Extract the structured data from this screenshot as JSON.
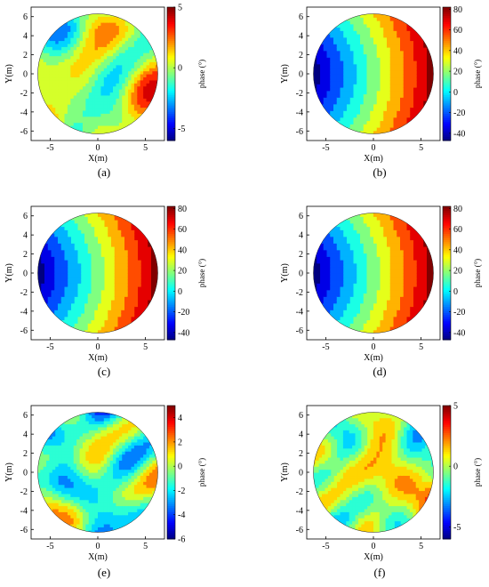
{
  "figure": {
    "panels": [
      {
        "label": "(a)",
        "xlabel": "X(m)",
        "ylabel": "Y(m)",
        "cblabel": "phase (°)",
        "cticks": [
          "5",
          "0",
          "-5"
        ],
        "cvals": [
          5,
          0,
          -5
        ],
        "crange": [
          -6,
          5
        ],
        "pattern": "noise",
        "amp": 5,
        "seed": 11
      },
      {
        "label": "(b)",
        "xlabel": "X(m)",
        "ylabel": "Y(m)",
        "cblabel": "phase (°)",
        "cticks": [
          "80",
          "60",
          "40",
          "20",
          "0",
          "-20",
          "-40"
        ],
        "cvals": [
          80,
          60,
          40,
          20,
          0,
          -20,
          -40
        ],
        "crange": [
          -47,
          82
        ],
        "pattern": "tilt"
      },
      {
        "label": "(c)",
        "xlabel": "X(m)",
        "ylabel": "Y(m)",
        "cblabel": "phase (°)",
        "cticks": [
          "80",
          "60",
          "40",
          "20",
          "0",
          "-20",
          "-40"
        ],
        "cvals": [
          80,
          60,
          40,
          20,
          0,
          -20,
          -40
        ],
        "crange": [
          -47,
          82
        ],
        "pattern": "tilt"
      },
      {
        "label": "(d)",
        "xlabel": "X(m)",
        "ylabel": "Y(m)",
        "cblabel": "phase (°)",
        "cticks": [
          "80",
          "60",
          "40",
          "20",
          "0",
          "-20",
          "-40"
        ],
        "cvals": [
          80,
          60,
          40,
          20,
          0,
          -20,
          -40
        ],
        "crange": [
          -47,
          82
        ],
        "pattern": "tilt"
      },
      {
        "label": "(e)",
        "xlabel": "X(m)",
        "ylabel": "Y(m)",
        "cblabel": "phase (°)",
        "cticks": [
          "4",
          "2",
          "0",
          "-2",
          "-4",
          "-6"
        ],
        "cvals": [
          4,
          2,
          0,
          -2,
          -4,
          -6
        ],
        "crange": [
          -6,
          5
        ],
        "pattern": "noise",
        "amp": 5,
        "seed": 29
      },
      {
        "label": "(f)",
        "xlabel": "X(m)",
        "ylabel": "Y(m)",
        "cblabel": "phase (°)",
        "cticks": [
          "5",
          "0",
          "-5"
        ],
        "cvals": [
          5,
          0,
          -5
        ],
        "crange": [
          -6,
          5
        ],
        "pattern": "noise",
        "amp": 5,
        "seed": 47
      }
    ]
  },
  "chart_data": [
    {
      "type": "heatmap",
      "panel": "(a)",
      "xlabel": "X(m)",
      "ylabel": "Y(m)",
      "colorbar_label": "phase (°)",
      "xlim": [
        -7,
        7
      ],
      "ylim": [
        -7,
        7
      ],
      "xticks": [
        -5,
        0,
        5
      ],
      "yticks": [
        -6,
        -4,
        -2,
        0,
        2,
        4,
        6
      ],
      "colorbar_range": [
        -6,
        5
      ],
      "colorbar_ticks": [
        -5,
        0,
        5
      ],
      "domain": "circle radius 6.3"
    },
    {
      "type": "heatmap",
      "panel": "(b)",
      "xlabel": "X(m)",
      "ylabel": "Y(m)",
      "colorbar_label": "phase (°)",
      "xlim": [
        -7,
        7
      ],
      "ylim": [
        -7,
        7
      ],
      "xticks": [
        -5,
        0,
        5
      ],
      "yticks": [
        -6,
        -4,
        -2,
        0,
        2,
        4,
        6
      ],
      "colorbar_range": [
        -47,
        82
      ],
      "colorbar_ticks": [
        -40,
        -20,
        0,
        20,
        40,
        60,
        80
      ]
    },
    {
      "type": "heatmap",
      "panel": "(c)",
      "xlabel": "X(m)",
      "ylabel": "Y(m)",
      "colorbar_label": "phase (°)",
      "xlim": [
        -7,
        7
      ],
      "ylim": [
        -7,
        7
      ],
      "xticks": [
        -5,
        0,
        5
      ],
      "yticks": [
        -6,
        -4,
        -2,
        0,
        2,
        4,
        6
      ],
      "colorbar_range": [
        -47,
        82
      ],
      "colorbar_ticks": [
        -40,
        -20,
        0,
        20,
        40,
        60,
        80
      ]
    },
    {
      "type": "heatmap",
      "panel": "(d)",
      "xlabel": "X(m)",
      "ylabel": "Y(m)",
      "colorbar_label": "phase (°)",
      "xlim": [
        -7,
        7
      ],
      "ylim": [
        -7,
        7
      ],
      "xticks": [
        -5,
        0,
        5
      ],
      "yticks": [
        -6,
        -4,
        -2,
        0,
        2,
        4,
        6
      ],
      "colorbar_range": [
        -47,
        82
      ],
      "colorbar_ticks": [
        -40,
        -20,
        0,
        20,
        40,
        60,
        80
      ]
    },
    {
      "type": "heatmap",
      "panel": "(e)",
      "xlabel": "X(m)",
      "ylabel": "Y(m)",
      "colorbar_label": "phase (°)",
      "xlim": [
        -7,
        7
      ],
      "ylim": [
        -7,
        7
      ],
      "xticks": [
        -5,
        0,
        5
      ],
      "yticks": [
        -6,
        -4,
        -2,
        0,
        2,
        4,
        6
      ],
      "colorbar_range": [
        -6,
        5
      ],
      "colorbar_ticks": [
        -6,
        -4,
        -2,
        0,
        2,
        4
      ]
    },
    {
      "type": "heatmap",
      "panel": "(f)",
      "xlabel": "X(m)",
      "ylabel": "Y(m)",
      "colorbar_label": "phase (°)",
      "xlim": [
        -7,
        7
      ],
      "ylim": [
        -7,
        7
      ],
      "xticks": [
        -5,
        0,
        5
      ],
      "yticks": [
        -6,
        -4,
        -2,
        0,
        2,
        4,
        6
      ],
      "colorbar_range": [
        -6,
        5
      ],
      "colorbar_ticks": [
        -5,
        0,
        5
      ]
    }
  ]
}
